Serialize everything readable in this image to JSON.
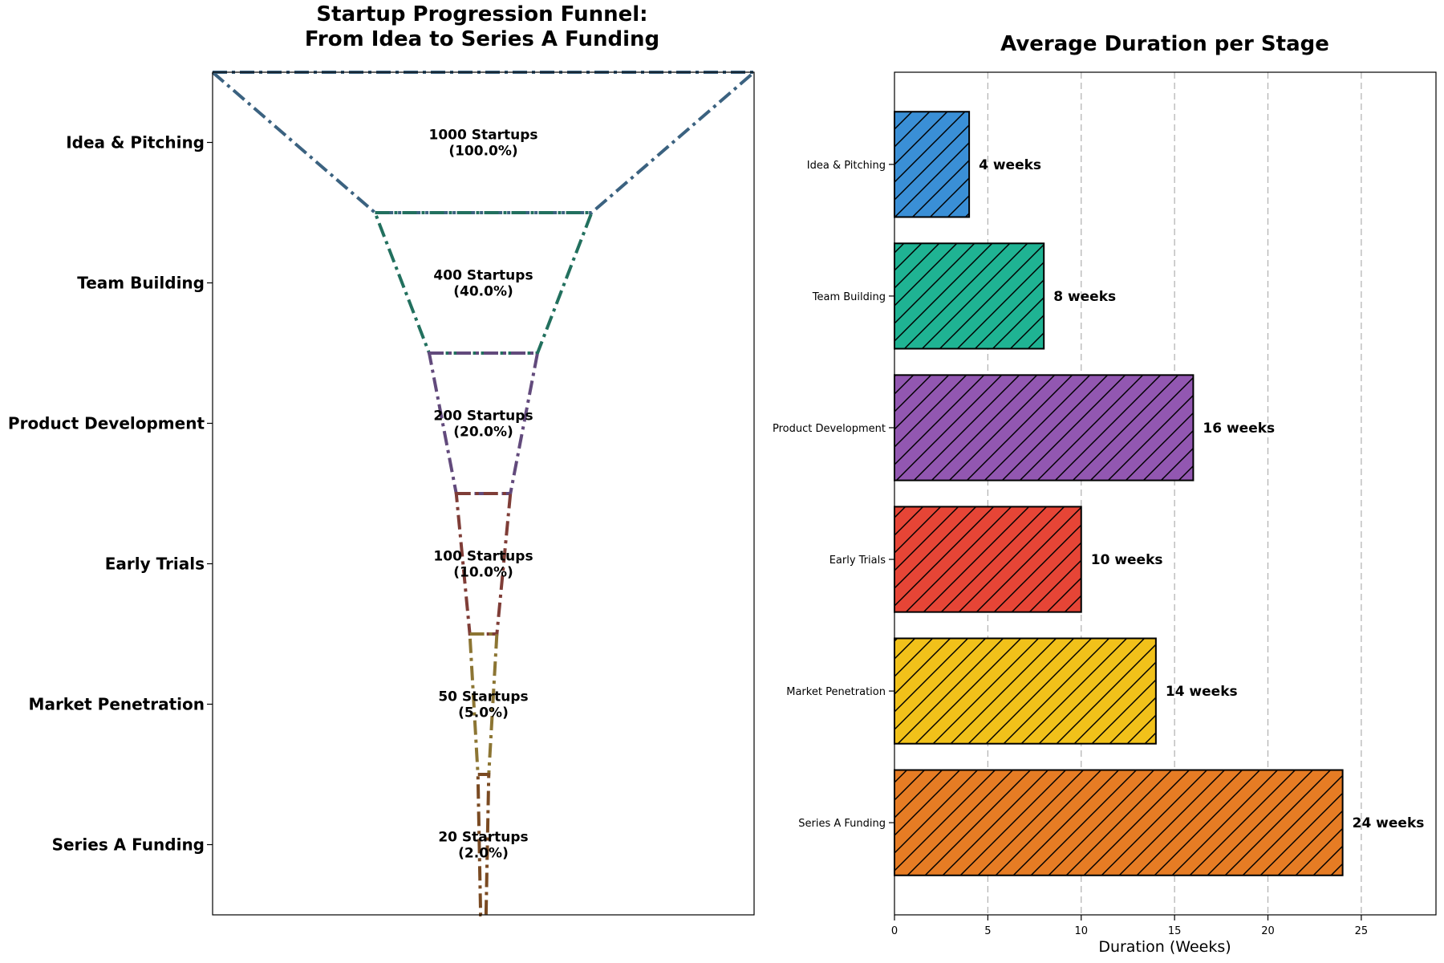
{
  "chart_data": [
    {
      "type": "funnel",
      "title_lines": [
        "Startup Progression Funnel:",
        "From Idea to Series A Funding"
      ],
      "stages": [
        "Idea & Pitching",
        "Team Building",
        "Product Development",
        "Early Trials",
        "Market Penetration",
        "Series A Funding"
      ],
      "values": [
        1000,
        400,
        200,
        100,
        50,
        20
      ],
      "labels": [
        "1000 Startups\n(100.0%)",
        "400 Startups\n(40.0%)",
        "200 Startups\n(20.0%)",
        "100 Startups\n(10.0%)",
        "50 Startups\n(5.0%)",
        "20 Startups\n(2.0%)"
      ],
      "colors": [
        "#3b6280",
        "#22705e",
        "#624a7c",
        "#7f3d37",
        "#8c7533",
        "#7a4a22"
      ],
      "line_style": "dash-dot",
      "grid": false
    },
    {
      "type": "bar",
      "orientation": "horizontal",
      "title": "Average Duration per Stage",
      "categories": [
        "Idea & Pitching",
        "Team Building",
        "Product Development",
        "Early Trials",
        "Market Penetration",
        "Series A Funding"
      ],
      "values": [
        4,
        8,
        16,
        10,
        14,
        24
      ],
      "value_labels": [
        "4 weeks",
        "8 weeks",
        "16 weeks",
        "10 weeks",
        "14 weeks",
        "24 weeks"
      ],
      "colors": [
        "#3a8fd6",
        "#1fb393",
        "#9257b1",
        "#e64536",
        "#f1c11a",
        "#e67c24"
      ],
      "hatch": "diagonal",
      "xlabel": "Duration (Weeks)",
      "xlim": [
        0,
        29
      ],
      "xticks": [
        0,
        5,
        10,
        15,
        20,
        25
      ],
      "grid": "x-dashed"
    }
  ]
}
